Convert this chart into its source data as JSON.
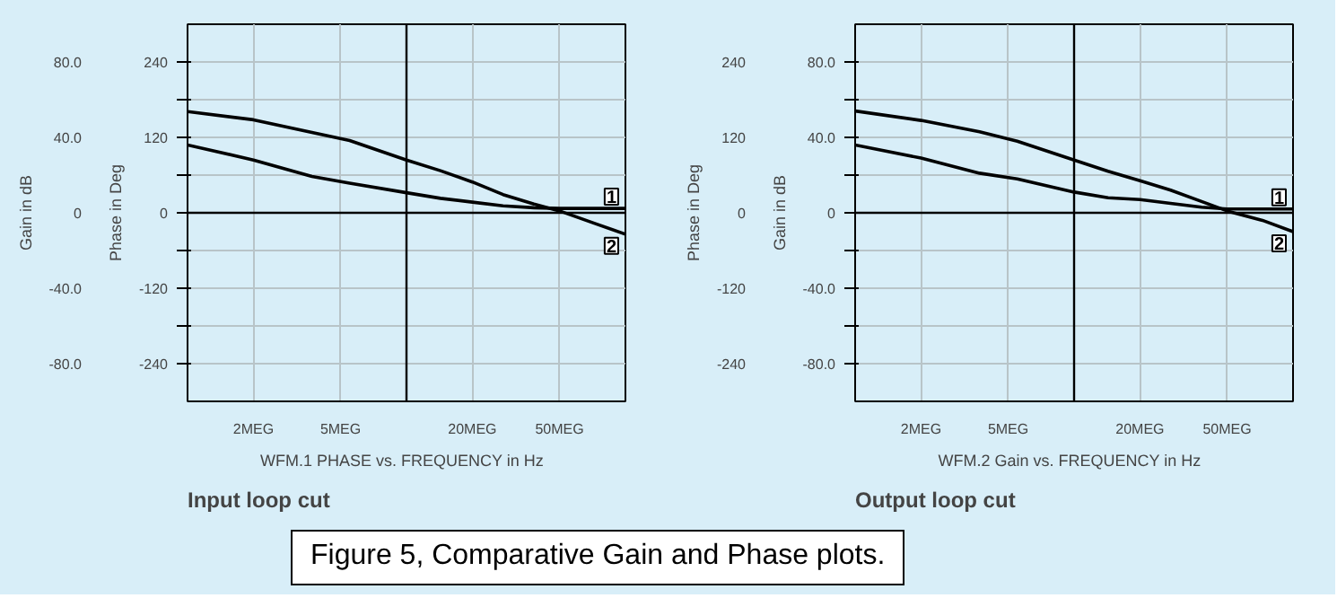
{
  "chart_data": [
    {
      "type": "line",
      "title": "Input loop cut",
      "xlabel": "WFM.1   PHASE vs. FREQUENCY in Hz",
      "ylabel": "Phase in Deg",
      "y2label": "Gain in dB",
      "log": "x",
      "grid": true,
      "legend": false,
      "marker": "none",
      "line_style": "solid",
      "x": [
        1,
        2,
        3.7,
        5.5,
        10,
        14.3,
        20,
        27.6,
        38.2,
        50,
        72.5,
        100
      ],
      "xlim": [
        1,
        100
      ],
      "xticks": [
        {
          "value": 2,
          "label": "2MEG"
        },
        {
          "value": 5,
          "label": "5MEG"
        },
        {
          "value": 20,
          "label": "20MEG"
        },
        {
          "value": 50,
          "label": "50MEG"
        }
      ],
      "ylim": [
        -300,
        300
      ],
      "yticks": [
        {
          "value": -240,
          "label": "-240"
        },
        {
          "value": -180,
          "label": null
        },
        {
          "value": -120,
          "label": "-120"
        },
        {
          "value": -60,
          "label": null
        },
        0,
        {
          "value": 60,
          "label": null
        },
        120,
        {
          "value": 180,
          "label": null
        },
        240
      ],
      "y2lim": [
        -100,
        100
      ],
      "y2ticks": [
        {
          "value": -80,
          "label": "-80.0"
        },
        {
          "value": -40,
          "label": "-40.0"
        },
        0,
        {
          "value": 40,
          "label": "40.0"
        },
        {
          "value": 80,
          "label": "80.0"
        }
      ],
      "ref_lines": [
        {
          "axis": "x",
          "value": 10,
          "label": null,
          "color": "#000000"
        },
        {
          "axis": "y",
          "value": 0,
          "label": null,
          "color": "#000000"
        }
      ],
      "series": [
        {
          "name": "1",
          "color": "#000000",
          "values": [
            108,
            84,
            58,
            47,
            32,
            23,
            17,
            11,
            8,
            7,
            7,
            7
          ]
        },
        {
          "name": "2",
          "color": "#000000",
          "values": [
            161,
            148,
            128,
            115,
            84,
            67,
            49,
            29,
            14,
            3,
            -17,
            -34
          ]
        }
      ],
      "annotations": [
        "Figure 5, Comparative Gain and Phase plots."
      ]
    },
    {
      "type": "line",
      "title": "Output loop cut",
      "xlabel": "WFM.2   Gain vs. FREQUENCY in Hz",
      "ylabel": "Gain in dB",
      "y2label": "Phase in Deg",
      "log": "x",
      "grid": true,
      "legend": false,
      "marker": "none",
      "line_style": "solid",
      "x": [
        1,
        2,
        3.7,
        5.5,
        10,
        14.3,
        20,
        27.6,
        38.2,
        50,
        72.5,
        100
      ],
      "xlim": [
        1,
        100
      ],
      "xticks": [
        {
          "value": 2,
          "label": "2MEG"
        },
        {
          "value": 5,
          "label": "5MEG"
        },
        {
          "value": 20,
          "label": "20MEG"
        },
        {
          "value": 50,
          "label": "50MEG"
        }
      ],
      "ylim": [
        -100,
        100
      ],
      "yticks": [
        {
          "value": -80,
          "label": "-80.0"
        },
        {
          "value": -60,
          "label": null
        },
        {
          "value": -40,
          "label": "-40.0"
        },
        {
          "value": -20,
          "label": null
        },
        0,
        {
          "value": 20,
          "label": null
        },
        {
          "value": 40,
          "label": "40.0"
        },
        {
          "value": 60,
          "label": null
        },
        {
          "value": 80,
          "label": "80.0"
        }
      ],
      "y2lim": [
        -300,
        300
      ],
      "y2ticks": [
        {
          "value": -240,
          "label": "-240"
        },
        {
          "value": -120,
          "label": "-120"
        },
        0,
        120,
        240
      ],
      "ref_lines": [
        {
          "axis": "x",
          "value": 10,
          "label": null,
          "color": "#000000"
        },
        {
          "axis": "y",
          "value": 0,
          "label": null,
          "color": "#000000"
        }
      ],
      "series": [
        {
          "name": "1",
          "color": "#000000",
          "values": [
            36,
            29,
            21,
            18,
            11,
            8,
            7,
            5,
            3,
            2,
            2,
            2
          ]
        },
        {
          "name": "2",
          "color": "#000000",
          "values": [
            54,
            49,
            43,
            38,
            28,
            22,
            17,
            12,
            6,
            1,
            -4,
            -10
          ]
        }
      ]
    }
  ]
}
